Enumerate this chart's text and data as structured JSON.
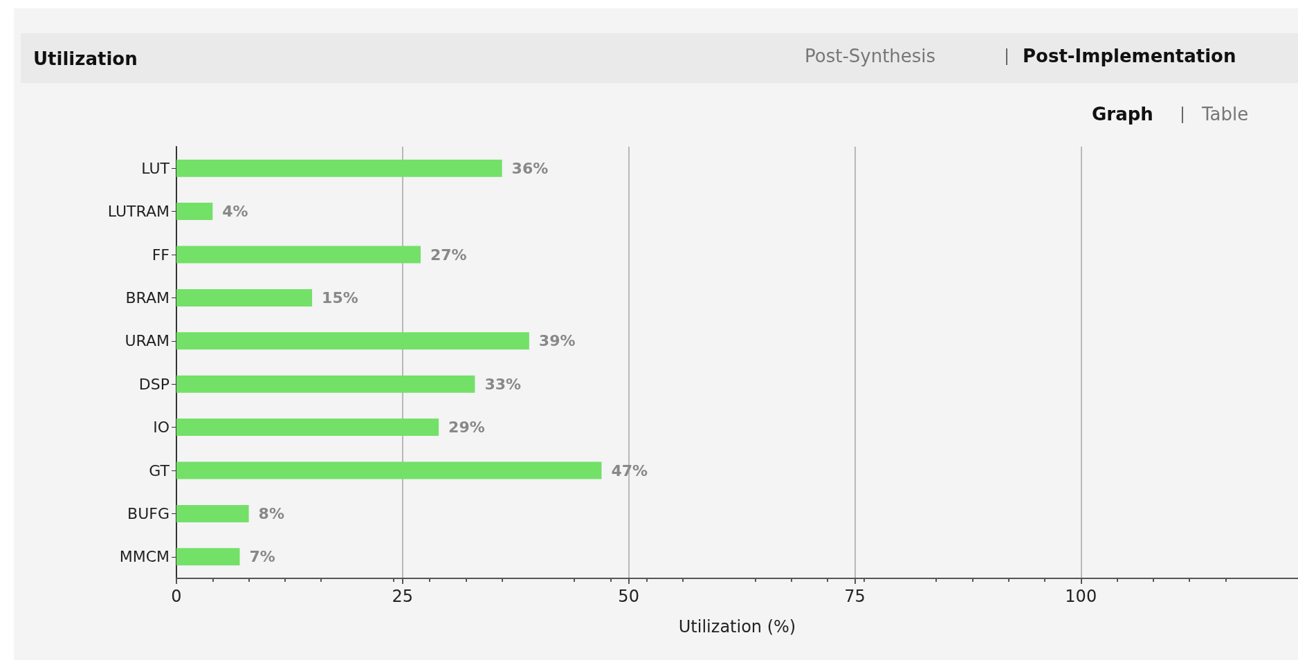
{
  "chart_data": {
    "type": "bar",
    "orientation": "horizontal",
    "title": "Utilization",
    "annotations": [
      "Post-Synthesis",
      "Post-Implementation",
      "Graph",
      "Table"
    ],
    "categories": [
      "LUT",
      "LUTRAM",
      "FF",
      "BRAM",
      "URAM",
      "DSP",
      "IO",
      "GT",
      "BUFG",
      "MMCM"
    ],
    "values": [
      36,
      4,
      27,
      15,
      39,
      33,
      29,
      47,
      8,
      7
    ],
    "value_labels": [
      "36%",
      "4%",
      "27%",
      "15%",
      "39%",
      "33%",
      "29%",
      "47%",
      "8%",
      "7%"
    ],
    "color": "#73e068",
    "xlabel": "Utilization (%)",
    "xlim": [
      0,
      124
    ],
    "xticks": [
      0,
      25,
      50,
      75,
      100
    ],
    "grid": "x"
  }
}
